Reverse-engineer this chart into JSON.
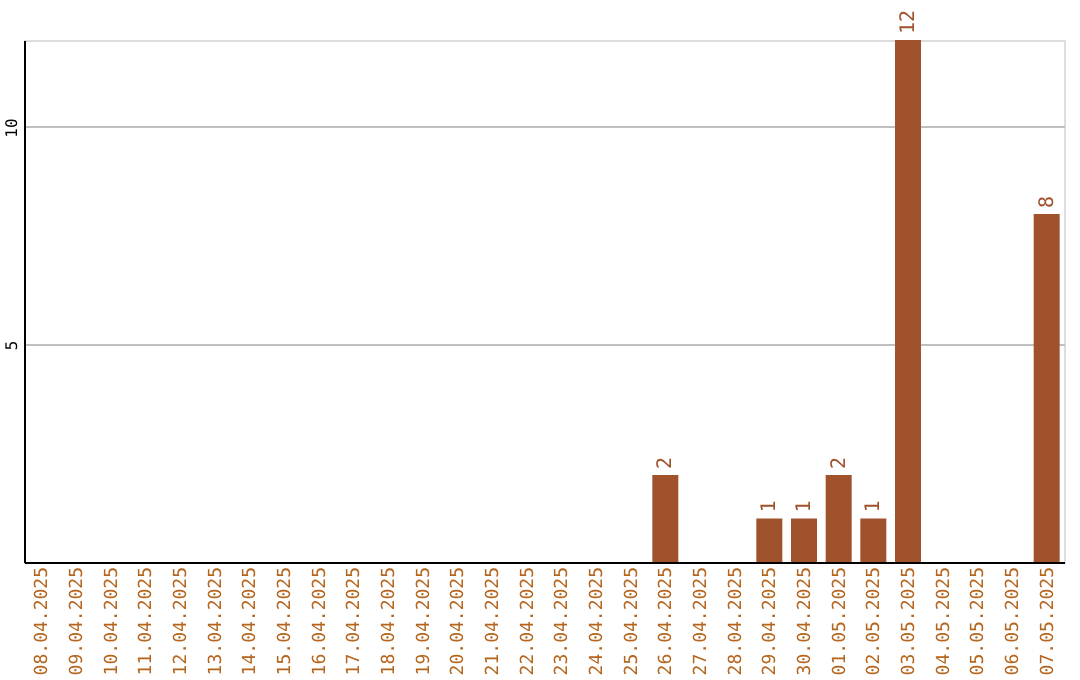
{
  "chart_data": {
    "type": "bar",
    "categories": [
      "08.04.2025",
      "09.04.2025",
      "10.04.2025",
      "11.04.2025",
      "12.04.2025",
      "13.04.2025",
      "14.04.2025",
      "15.04.2025",
      "16.04.2025",
      "17.04.2025",
      "18.04.2025",
      "19.04.2025",
      "20.04.2025",
      "21.04.2025",
      "22.04.2025",
      "23.04.2025",
      "24.04.2025",
      "25.04.2025",
      "26.04.2025",
      "27.04.2025",
      "28.04.2025",
      "29.04.2025",
      "30.04.2025",
      "01.05.2025",
      "02.05.2025",
      "03.05.2025",
      "04.05.2025",
      "05.05.2025",
      "06.05.2025",
      "07.05.2025"
    ],
    "values": [
      0,
      0,
      0,
      0,
      0,
      0,
      0,
      0,
      0,
      0,
      0,
      0,
      0,
      0,
      0,
      0,
      0,
      0,
      2,
      0,
      0,
      1,
      1,
      2,
      1,
      12,
      0,
      0,
      0,
      8
    ],
    "value_labels": [
      null,
      null,
      null,
      null,
      null,
      null,
      null,
      null,
      null,
      null,
      null,
      null,
      null,
      null,
      null,
      null,
      null,
      null,
      "2",
      null,
      null,
      "1",
      "1",
      "2",
      "1",
      "12",
      null,
      null,
      null,
      "8"
    ],
    "color": "#a0522d",
    "ylim": [
      0,
      12
    ],
    "yticks": [
      5,
      10
    ],
    "grid": "y"
  }
}
